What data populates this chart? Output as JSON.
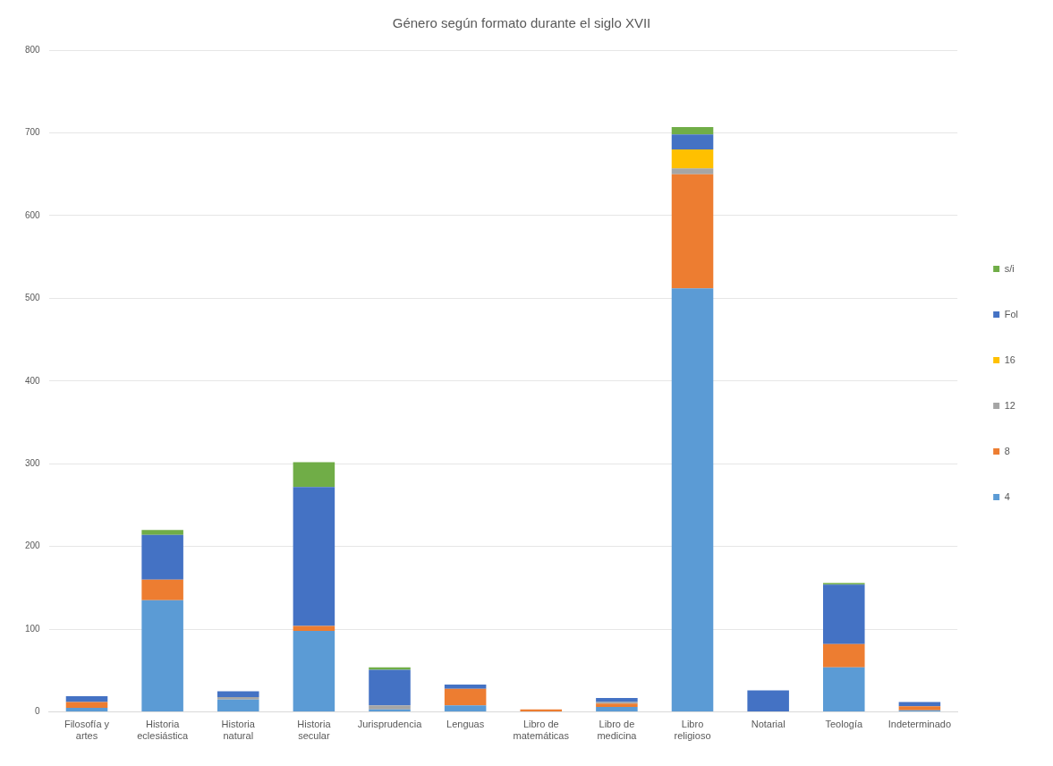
{
  "chart_data": {
    "type": "bar",
    "title": "Género según formato durante el siglo XVII",
    "stacked": true,
    "grid": "y",
    "legend": "right",
    "categories": [
      "Filosofía y artes",
      "Historia eclesiástica",
      "Historia natural",
      "Historia secular",
      "Jurisprudencia",
      "Lenguas",
      "Libro de matemáticas",
      "Libro de medicina",
      "Libro religioso",
      "Notarial",
      "Teología",
      "Indeterminado"
    ],
    "series": [
      {
        "name": "4",
        "color": "#5b9bd5",
        "values": [
          5,
          135,
          15,
          98,
          3,
          8,
          null,
          6,
          512,
          0,
          54,
          2
        ]
      },
      {
        "name": "8",
        "color": "#ed7d31",
        "values": [
          7,
          25,
          0,
          6,
          0,
          20,
          3,
          4,
          138,
          0,
          28,
          5
        ]
      },
      {
        "name": "12",
        "color": "#a5a5a5",
        "values": [
          null,
          0,
          3,
          0,
          5,
          0,
          null,
          2,
          7,
          0,
          0,
          0
        ]
      },
      {
        "name": "16",
        "color": "#ffc000",
        "values": [
          0,
          0,
          0,
          0,
          0,
          0,
          0,
          0,
          23,
          0,
          0,
          0
        ]
      },
      {
        "name": "Fol",
        "color": "#4472c4",
        "values": [
          7,
          54,
          7,
          168,
          43,
          5,
          0,
          5,
          18,
          26,
          72,
          5
        ]
      },
      {
        "name": "s/i",
        "color": "#70ad47",
        "values": [
          0,
          6,
          null,
          30,
          3,
          0,
          0,
          0,
          9,
          0,
          2,
          0
        ]
      }
    ],
    "ylim": [
      0,
      800
    ],
    "yticks": [
      0,
      100,
      200,
      300,
      400,
      500,
      600,
      700,
      800
    ]
  }
}
